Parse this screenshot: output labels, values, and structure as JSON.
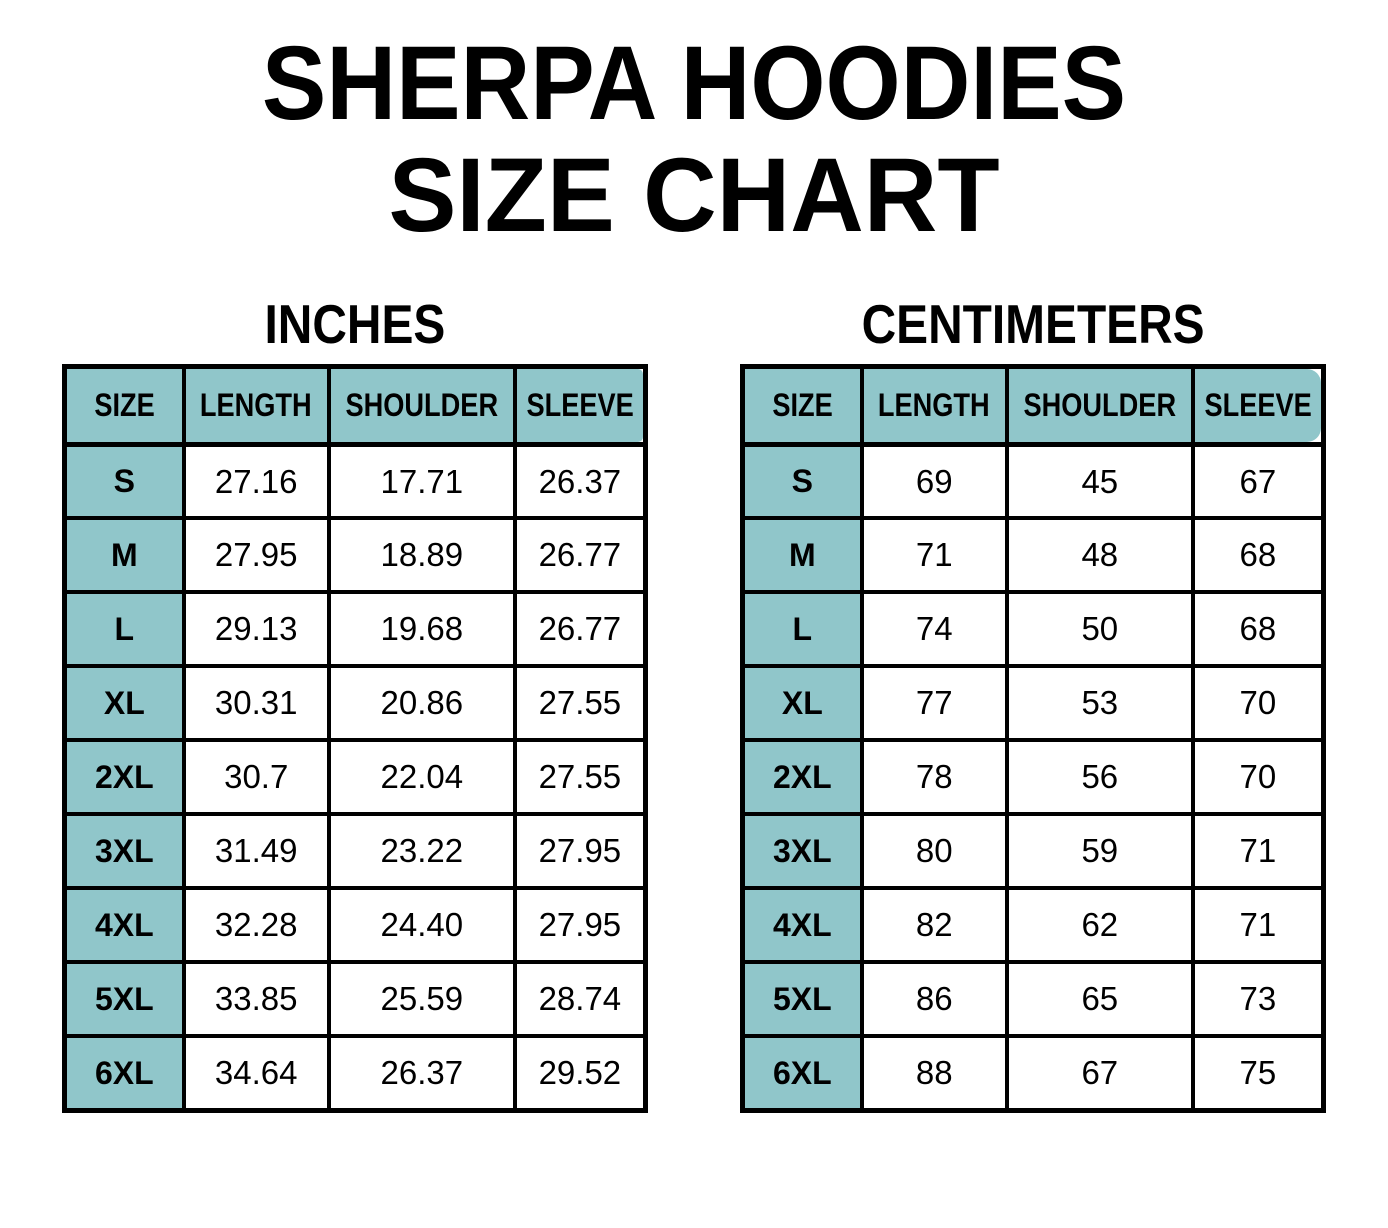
{
  "page": {
    "title_line1": "SHERPA HOODIES",
    "title_line2": "SIZE CHART",
    "background_color": "#FFFFFF",
    "accent_color": "#90C6CA",
    "border_color": "#000000",
    "text_color": "#000000"
  },
  "tables": [
    {
      "heading": "INCHES",
      "columns": [
        "SIZE",
        "LENGTH",
        "SHOULDER",
        "SLEEVE"
      ],
      "rows": [
        {
          "size": "S",
          "length": "27.16",
          "shoulder": "17.71",
          "sleeve": "26.37"
        },
        {
          "size": "M",
          "length": "27.95",
          "shoulder": "18.89",
          "sleeve": "26.77"
        },
        {
          "size": "L",
          "length": "29.13",
          "shoulder": "19.68",
          "sleeve": "26.77"
        },
        {
          "size": "XL",
          "length": "30.31",
          "shoulder": "20.86",
          "sleeve": "27.55"
        },
        {
          "size": "2XL",
          "length": "30.7",
          "shoulder": "22.04",
          "sleeve": "27.55"
        },
        {
          "size": "3XL",
          "length": "31.49",
          "shoulder": "23.22",
          "sleeve": "27.95"
        },
        {
          "size": "4XL",
          "length": "32.28",
          "shoulder": "24.40",
          "sleeve": "27.95"
        },
        {
          "size": "5XL",
          "length": "33.85",
          "shoulder": "25.59",
          "sleeve": "28.74"
        },
        {
          "size": "6XL",
          "length": "34.64",
          "shoulder": "26.37",
          "sleeve": "29.52"
        }
      ]
    },
    {
      "heading": "CENTIMETERS",
      "columns": [
        "SIZE",
        "LENGTH",
        "SHOULDER",
        "SLEEVE"
      ],
      "rows": [
        {
          "size": "S",
          "length": "69",
          "shoulder": "45",
          "sleeve": "67"
        },
        {
          "size": "M",
          "length": "71",
          "shoulder": "48",
          "sleeve": "68"
        },
        {
          "size": "L",
          "length": "74",
          "shoulder": "50",
          "sleeve": "68"
        },
        {
          "size": "XL",
          "length": "77",
          "shoulder": "53",
          "sleeve": "70"
        },
        {
          "size": "2XL",
          "length": "78",
          "shoulder": "56",
          "sleeve": "70"
        },
        {
          "size": "3XL",
          "length": "80",
          "shoulder": "59",
          "sleeve": "71"
        },
        {
          "size": "4XL",
          "length": "82",
          "shoulder": "62",
          "sleeve": "71"
        },
        {
          "size": "5XL",
          "length": "86",
          "shoulder": "65",
          "sleeve": "73"
        },
        {
          "size": "6XL",
          "length": "88",
          "shoulder": "67",
          "sleeve": "75"
        }
      ]
    }
  ],
  "chart_data": [
    {
      "type": "table",
      "title": "SHERPA HOODIES SIZE CHART - INCHES",
      "columns": [
        "SIZE",
        "LENGTH",
        "SHOULDER",
        "SLEEVE"
      ],
      "rows": [
        [
          "S",
          27.16,
          17.71,
          26.37
        ],
        [
          "M",
          27.95,
          18.89,
          26.77
        ],
        [
          "L",
          29.13,
          19.68,
          26.77
        ],
        [
          "XL",
          30.31,
          20.86,
          27.55
        ],
        [
          "2XL",
          30.7,
          22.04,
          27.55
        ],
        [
          "3XL",
          31.49,
          23.22,
          27.95
        ],
        [
          "4XL",
          32.28,
          24.4,
          27.95
        ],
        [
          "5XL",
          33.85,
          25.59,
          28.74
        ],
        [
          "6XL",
          34.64,
          26.37,
          29.52
        ]
      ]
    },
    {
      "type": "table",
      "title": "SHERPA HOODIES SIZE CHART - CENTIMETERS",
      "columns": [
        "SIZE",
        "LENGTH",
        "SHOULDER",
        "SLEEVE"
      ],
      "rows": [
        [
          "S",
          69,
          45,
          67
        ],
        [
          "M",
          71,
          48,
          68
        ],
        [
          "L",
          74,
          50,
          68
        ],
        [
          "XL",
          77,
          53,
          70
        ],
        [
          "2XL",
          78,
          56,
          70
        ],
        [
          "3XL",
          80,
          59,
          71
        ],
        [
          "4XL",
          82,
          62,
          71
        ],
        [
          "5XL",
          86,
          65,
          73
        ],
        [
          "6XL",
          88,
          67,
          75
        ]
      ]
    }
  ]
}
